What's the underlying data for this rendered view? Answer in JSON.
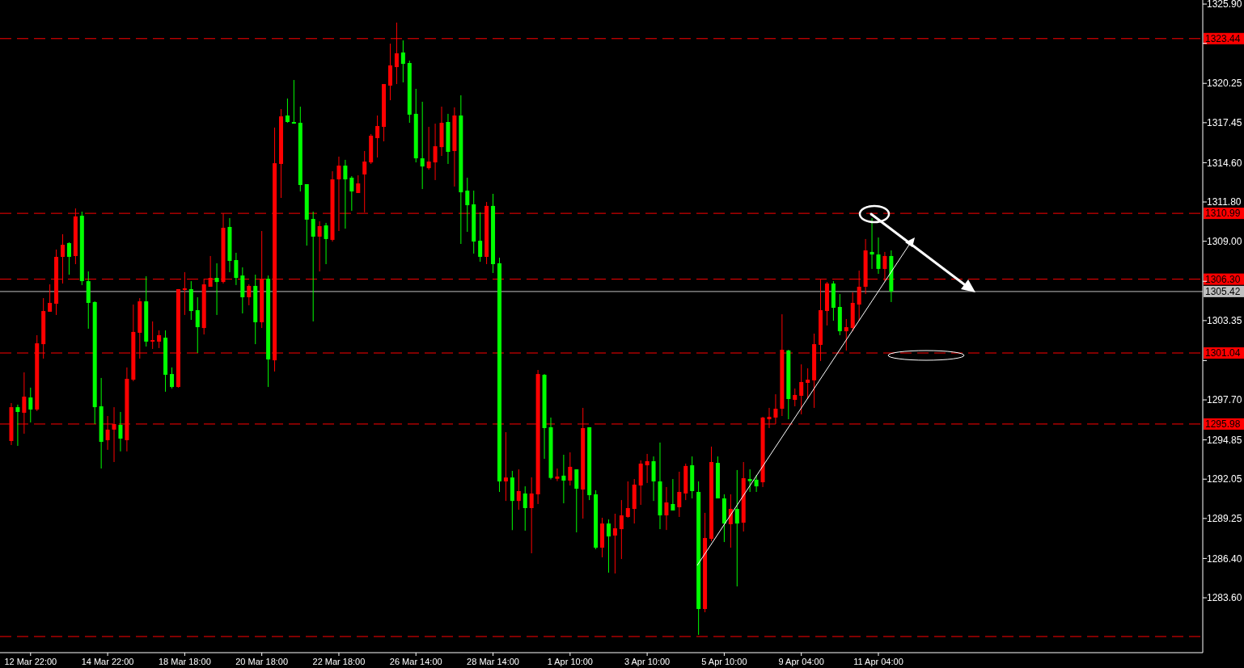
{
  "chart_data": {
    "type": "candlestick",
    "categories": [
      null,
      null,
      null,
      "12 Mar 22:00",
      null,
      null,
      null,
      null,
      null,
      null,
      null,
      null,
      null,
      null,
      null,
      "14 Mar 22:00",
      null,
      null,
      null,
      null,
      null,
      null,
      null,
      null,
      null,
      null,
      null,
      "18 Mar 18:00",
      null,
      null,
      null,
      null,
      null,
      null,
      null,
      null,
      null,
      null,
      null,
      "20 Mar 18:00",
      null,
      null,
      null,
      null,
      null,
      null,
      null,
      null,
      null,
      null,
      null,
      "22 Mar 18:00",
      null,
      null,
      null,
      null,
      null,
      null,
      null,
      null,
      null,
      null,
      null,
      "26 Mar 14:00",
      null,
      null,
      null,
      null,
      null,
      null,
      null,
      null,
      null,
      null,
      null,
      "28 Mar 14:00",
      null,
      null,
      null,
      null,
      null,
      null,
      null,
      null,
      null,
      null,
      null,
      "1 Apr 10:00",
      null,
      null,
      null,
      null,
      null,
      null,
      null,
      null,
      null,
      null,
      null,
      "3 Apr 10:00",
      null,
      null,
      null,
      null,
      null,
      null,
      null,
      null,
      null,
      null,
      null,
      "5 Apr 10:00",
      null,
      null,
      null,
      null,
      null,
      null,
      null,
      null,
      null,
      null,
      null,
      "9 Apr 04:00",
      null,
      null,
      null,
      null,
      null,
      null,
      null,
      null,
      null,
      null,
      null,
      "11 Apr 04:00",
      null,
      null,
      null,
      null,
      null,
      null,
      null,
      null,
      null,
      null,
      null,
      null,
      null,
      null,
      null,
      null,
      null,
      null,
      null,
      null,
      null,
      null,
      null,
      null,
      null,
      null,
      null,
      null,
      null,
      null,
      null,
      null,
      null,
      null,
      null,
      null,
      null,
      null,
      null,
      null,
      null,
      null,
      null,
      null,
      null,
      null,
      null,
      null,
      null,
      null
    ],
    "ohlc": [
      [
        1294.77,
        1297.47,
        1294.48,
        1297.18
      ],
      [
        1297.18,
        1297.36,
        1294.42,
        1296.84
      ],
      [
        1296.78,
        1299.66,
        1295.29,
        1297.93
      ],
      [
        1297.87,
        1298.57,
        1296.09,
        1297.01
      ],
      [
        1297.01,
        1302.31,
        1296.9,
        1301.73
      ],
      [
        1301.67,
        1304.95,
        1300.64,
        1304.03
      ],
      [
        1303.98,
        1305.93,
        1303.98,
        1304.61
      ],
      [
        1304.55,
        1308.41,
        1303.75,
        1307.89
      ],
      [
        1307.89,
        1309.5,
        1305.99,
        1308.75
      ],
      [
        1308.87,
        1308.93,
        1306.62,
        1307.89
      ],
      [
        1307.95,
        1311.34,
        1307.37,
        1310.77
      ],
      [
        1310.82,
        1311.11,
        1305.88,
        1306.16
      ],
      [
        1306.16,
        1306.85,
        1302.77,
        1304.61
      ],
      [
        1304.67,
        1304.72,
        1295.98,
        1297.18
      ],
      [
        1297.24,
        1299.26,
        1292.81,
        1294.71
      ],
      [
        1294.83,
        1296.55,
        1294.14,
        1295.58
      ],
      [
        1295.58,
        1297.18,
        1293.27,
        1295.98
      ],
      [
        1295.92,
        1296.84,
        1294.03,
        1294.94
      ],
      [
        1294.83,
        1300.01,
        1294.03,
        1299.2
      ],
      [
        1299.14,
        1304.49,
        1299.03,
        1302.54
      ],
      [
        1302.48,
        1304.95,
        1300.64,
        1304.72
      ],
      [
        1304.72,
        1306.51,
        1301.5,
        1301.85
      ],
      [
        1301.85,
        1303.29,
        1301.33,
        1301.96
      ],
      [
        1301.85,
        1302.65,
        1301.39,
        1302.31
      ],
      [
        1302.13,
        1302.65,
        1298.28,
        1299.49
      ],
      [
        1299.54,
        1300.01,
        1298.51,
        1298.62
      ],
      [
        1298.62,
        1305.59,
        1298.57,
        1305.59
      ],
      [
        1305.53,
        1306.8,
        1303.75,
        1305.65
      ],
      [
        1305.59,
        1306.16,
        1303.4,
        1304.03
      ],
      [
        1304.09,
        1305.01,
        1301.04,
        1302.88
      ],
      [
        1302.82,
        1306.33,
        1302.36,
        1305.93
      ],
      [
        1305.76,
        1307.95,
        1305.76,
        1306.39
      ],
      [
        1306.39,
        1307.43,
        1303.75,
        1306.1
      ],
      [
        1306.1,
        1310.99,
        1305.99,
        1309.96
      ],
      [
        1310.02,
        1310.65,
        1306.8,
        1307.6
      ],
      [
        1307.66,
        1308.18,
        1305.88,
        1306.39
      ],
      [
        1306.56,
        1307.14,
        1303.86,
        1305.01
      ],
      [
        1305.01,
        1305.93,
        1304.44,
        1305.82
      ],
      [
        1305.82,
        1306.62,
        1301.67,
        1303.23
      ],
      [
        1303.23,
        1309.73,
        1302.82,
        1306.33
      ],
      [
        1306.33,
        1306.56,
        1298.62,
        1300.58
      ],
      [
        1300.52,
        1317.1,
        1299.72,
        1314.56
      ],
      [
        1314.51,
        1318.42,
        1312.09,
        1317.9
      ],
      [
        1317.96,
        1319.17,
        1317.44,
        1317.5
      ],
      [
        1317.5,
        1320.49,
        1317.38,
        1317.38
      ],
      [
        1317.44,
        1318.59,
        1312.55,
        1313.01
      ],
      [
        1313.07,
        1313.07,
        1308.69,
        1310.54
      ],
      [
        1310.59,
        1311.11,
        1303.29,
        1309.33
      ],
      [
        1309.33,
        1310.42,
        1306.85,
        1310.08
      ],
      [
        1310.13,
        1310.31,
        1307.37,
        1309.16
      ],
      [
        1309.1,
        1313.99,
        1308.98,
        1313.41
      ],
      [
        1313.41,
        1315.03,
        1309.73,
        1314.39
      ],
      [
        1314.39,
        1314.8,
        1309.9,
        1313.41
      ],
      [
        1313.53,
        1313.64,
        1311.17,
        1312.55
      ],
      [
        1312.44,
        1313.7,
        1312.44,
        1313.12
      ],
      [
        1313.76,
        1315.43,
        1311.06,
        1314.68
      ],
      [
        1314.62,
        1316.64,
        1314.51,
        1316.52
      ],
      [
        1316.35,
        1317.96,
        1314.97,
        1317.21
      ],
      [
        1317.15,
        1320.2,
        1316.12,
        1320.2
      ],
      [
        1320.09,
        1323.08,
        1319.05,
        1321.53
      ],
      [
        1321.41,
        1324.58,
        1320.2,
        1322.39
      ],
      [
        1322.45,
        1323.31,
        1320.32,
        1321.64
      ],
      [
        1321.7,
        1321.87,
        1317.44,
        1318.02
      ],
      [
        1318.08,
        1319.86,
        1314.62,
        1314.91
      ],
      [
        1314.91,
        1318.94,
        1312.72,
        1314.33
      ],
      [
        1314.21,
        1317.15,
        1314.1,
        1314.68
      ],
      [
        1314.62,
        1317.38,
        1313.36,
        1315.77
      ],
      [
        1315.71,
        1318.59,
        1315.08,
        1317.44
      ],
      [
        1317.5,
        1318.08,
        1314.51,
        1315.37
      ],
      [
        1315.43,
        1318.54,
        1312.9,
        1317.96
      ],
      [
        1317.96,
        1319.4,
        1308.81,
        1312.49
      ],
      [
        1312.61,
        1313.53,
        1309.67,
        1311.57
      ],
      [
        1311.63,
        1312.61,
        1308.12,
        1308.98
      ],
      [
        1309.04,
        1311.06,
        1307.54,
        1307.89
      ],
      [
        1307.89,
        1311.8,
        1307.37,
        1311.52
      ],
      [
        1311.52,
        1312.38,
        1306.74,
        1307.37
      ],
      [
        1307.43,
        1307.83,
        1291.14,
        1291.89
      ],
      [
        1291.89,
        1295.4,
        1290.5,
        1292.17
      ],
      [
        1292.17,
        1292.64,
        1288.42,
        1290.5
      ],
      [
        1290.5,
        1292.75,
        1289.87,
        1291.2
      ],
      [
        1291.03,
        1291.54,
        1288.38,
        1289.99
      ],
      [
        1289.99,
        1292.18,
        1286.77,
        1291.03
      ],
      [
        1290.97,
        1299.83,
        1290.28,
        1299.54
      ],
      [
        1299.49,
        1299.54,
        1293.5,
        1295.69
      ],
      [
        1295.75,
        1296.44,
        1292.03,
        1292.14
      ],
      [
        1292.08,
        1292.81,
        1291.91,
        1292.24
      ],
      [
        1292.3,
        1293.79,
        1290.33,
        1291.95
      ],
      [
        1291.95,
        1293.96,
        1291.6,
        1292.93
      ],
      [
        1292.75,
        1292.75,
        1288.26,
        1291.37
      ],
      [
        1291.31,
        1297.13,
        1289.24,
        1295.69
      ],
      [
        1295.75,
        1295.75,
        1290.56,
        1290.91
      ],
      [
        1290.97,
        1291.26,
        1287.06,
        1287.17
      ],
      [
        1287.17,
        1289.3,
        1286.48,
        1288.89
      ],
      [
        1288.89,
        1289.18,
        1285.39,
        1287.97
      ],
      [
        1288.03,
        1289.59,
        1285.33,
        1288.55
      ],
      [
        1288.49,
        1290.56,
        1286.36,
        1289.47
      ],
      [
        1289.36,
        1291.89,
        1289.3,
        1289.99
      ],
      [
        1289.93,
        1292.06,
        1288.89,
        1291.66
      ],
      [
        1291.6,
        1293.39,
        1290.22,
        1293.16
      ],
      [
        1293.04,
        1293.85,
        1291.78,
        1293.33
      ],
      [
        1293.33,
        1293.67,
        1290.5,
        1291.89
      ],
      [
        1291.89,
        1294.66,
        1288.49,
        1289.47
      ],
      [
        1289.47,
        1291.49,
        1288.43,
        1290.39
      ],
      [
        1290.28,
        1292.06,
        1289.82,
        1289.82
      ],
      [
        1290.05,
        1292.58,
        1289.36,
        1291.14
      ],
      [
        1291.03,
        1293.16,
        1290.56,
        1292.99
      ],
      [
        1293.04,
        1293.67,
        1290.68,
        1291.2
      ],
      [
        1291.14,
        1291.89,
        1280.96,
        1282.8
      ],
      [
        1282.8,
        1289.65,
        1282.57,
        1287.86
      ],
      [
        1287.8,
        1294.37,
        1287.63,
        1293.27
      ],
      [
        1293.21,
        1293.67,
        1290.68,
        1290.68
      ],
      [
        1290.68,
        1290.97,
        1287.57,
        1288.89
      ],
      [
        1288.84,
        1290.97,
        1287.17,
        1289.93
      ],
      [
        1289.93,
        1292.7,
        1284.41,
        1288.89
      ],
      [
        1288.95,
        1293.27,
        1288.32,
        1292.12
      ],
      [
        1292.06,
        1292.75,
        1291.14,
        1291.91
      ],
      [
        1292.01,
        1292.35,
        1291.14,
        1291.54
      ],
      [
        1291.83,
        1296.49,
        1291.49,
        1296.44
      ],
      [
        1296.32,
        1297.13,
        1295.69,
        1296.49
      ],
      [
        1296.44,
        1298.1,
        1295.98,
        1297.07
      ],
      [
        1297.07,
        1303.8,
        1296.55,
        1301.27
      ],
      [
        1301.22,
        1301.27,
        1296.32,
        1297.76
      ],
      [
        1297.7,
        1298.51,
        1297.24,
        1298.05
      ],
      [
        1297.99,
        1300.23,
        1296.67,
        1298.97
      ],
      [
        1298.91,
        1299.95,
        1297.76,
        1299.14
      ],
      [
        1299.09,
        1302.42,
        1297.13,
        1301.67
      ],
      [
        1301.62,
        1306.27,
        1300.47,
        1304.09
      ],
      [
        1304.03,
        1306.1,
        1303.0,
        1305.99
      ],
      [
        1305.99,
        1306.16,
        1303.34,
        1304.26
      ],
      [
        1304.32,
        1305.24,
        1302.31,
        1302.59
      ],
      [
        1302.59,
        1303.46,
        1301.21,
        1302.88
      ],
      [
        1302.82,
        1305.36,
        1302.59,
        1304.61
      ],
      [
        1304.49,
        1306.91,
        1303.34,
        1305.76
      ],
      [
        1305.76,
        1309.16,
        1305.24,
        1308.35
      ],
      [
        1308.24,
        1310.65,
        1307.03,
        1308.06
      ],
      [
        1308.06,
        1309.27,
        1306.68,
        1307.03
      ],
      [
        1307.03,
        1308.24,
        1306.16,
        1307.95
      ],
      [
        1307.95,
        1308.35,
        1304.67,
        1305.42
      ],
      null,
      null,
      null,
      null,
      null,
      null,
      null,
      null,
      null,
      null,
      null,
      null,
      null,
      null,
      null,
      null,
      null,
      null,
      null,
      null,
      null,
      null,
      null,
      null,
      null,
      null,
      null,
      null,
      null,
      null,
      null,
      null,
      null,
      null,
      null,
      null,
      null,
      null,
      null,
      null,
      null,
      null,
      null,
      null,
      null,
      null,
      null,
      null
    ],
    "ylim": [
      1279.69,
      1326.19
    ],
    "yticks": [
      {
        "value": 1325.9,
        "label": "1325.90"
      },
      {
        "value": 1323.1,
        "label": null
      },
      1320.25,
      1317.45,
      {
        "value": 1314.6,
        "label": "1314.60"
      },
      {
        "value": 1311.8,
        "label": "1311.80"
      },
      {
        "value": 1309.0,
        "label": "1309.00"
      },
      {
        "value": 1306.15,
        "label": null
      },
      1303.35,
      {
        "value": 1300.5,
        "label": null
      },
      {
        "value": 1297.7,
        "label": "1297.70"
      },
      1294.85,
      1292.05,
      1289.25,
      {
        "value": 1286.4,
        "label": "1286.40"
      },
      {
        "value": 1283.6,
        "label": "1283.60"
      }
    ],
    "ref_lines": [
      {
        "axis": "y",
        "value": 1323.44,
        "label": "1323.44",
        "color": "#ff0000",
        "line_style": "dashed"
      },
      {
        "axis": "y",
        "value": 1310.99,
        "label": "1310.99",
        "color": "#ff0000",
        "line_style": "dashed"
      },
      {
        "axis": "y",
        "value": 1306.3,
        "label": "1306.30",
        "color": "#ff0000",
        "line_style": "dashed"
      },
      {
        "axis": "y",
        "value": 1305.42,
        "label": "1305.42",
        "color": "#c0c0c0",
        "line_style": "solid"
      },
      {
        "axis": "y",
        "value": 1301.04,
        "label": "1301.04",
        "color": "#ff0000",
        "line_style": "dashed"
      },
      {
        "axis": "y",
        "value": 1295.98,
        "label": "1295.98",
        "color": "#ff0000",
        "line_style": "dashed"
      },
      {
        "axis": "y",
        "value": 1280.84,
        "label": null,
        "color": "#ff0000",
        "line_style": "dashed"
      }
    ],
    "grid": false
  }
}
